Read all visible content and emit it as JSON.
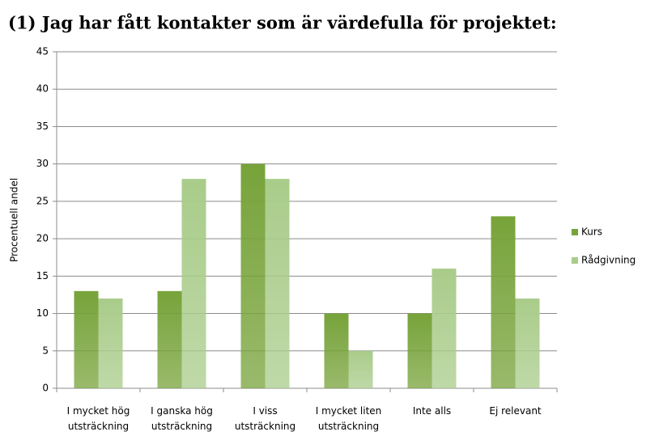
{
  "chart_data": {
    "type": "bar",
    "title": "(1) Jag har fått kontakter som är värdefulla för projektet:",
    "y_label": "Procentuell andel",
    "categories": [
      "I mycket hög\nutsträckning",
      "I ganska hög\nutsträckning",
      "I viss\nutsträckning",
      "I mycket liten\nutsträckning",
      "Inte alls",
      "Ej relevant"
    ],
    "series": [
      {
        "name": "Kurs",
        "color": "#77a33a",
        "values": [
          13,
          13,
          30,
          10,
          10,
          23
        ]
      },
      {
        "name": "Rådgivning",
        "color": "#a9cc8a",
        "values": [
          12,
          28,
          28,
          5,
          16,
          12
        ]
      }
    ],
    "ylim": [
      0,
      45
    ],
    "yticks": [
      0,
      5,
      10,
      15,
      20,
      25,
      30,
      35,
      40,
      45
    ],
    "grid": true,
    "legend": "right"
  }
}
